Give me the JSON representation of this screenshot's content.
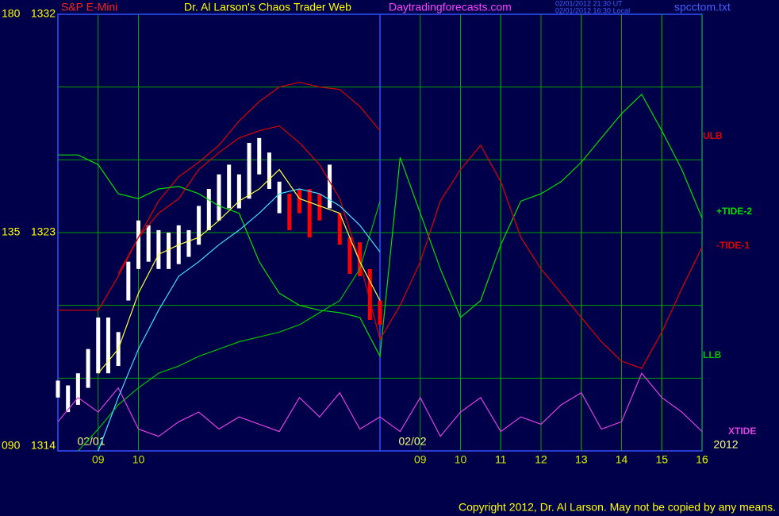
{
  "chart_data": {
    "type": "line",
    "symbol": "S&P E-Mini",
    "title": "Dr. Al Larson's Chaos Trader Web",
    "site": "Daytradingforecasts.com",
    "timestamps": [
      "02/01/2012 21:30 UT",
      "02/01/2012 16:30 Local"
    ],
    "file": "spcctom.txt",
    "copyright": "Copyright 2012, Dr. Al Larson. May not be copied by any means.",
    "xlim": [
      0,
      16
    ],
    "xticks": [
      {
        "value": 1,
        "label": "09"
      },
      {
        "value": 2,
        "label": "10"
      },
      11,
      12,
      13,
      14,
      15,
      16,
      {
        "value": 9,
        "label": "09"
      },
      {
        "value": 10,
        "label": "10"
      },
      {
        "value": 11,
        "label": "11"
      },
      {
        "value": 12,
        "label": "12"
      },
      {
        "value": 13,
        "label": "13"
      },
      {
        "value": 14,
        "label": "14"
      },
      {
        "value": 15,
        "label": "15"
      },
      {
        "value": 16,
        "label": "16"
      }
    ],
    "day_break": 8,
    "date_labels": [
      "02/01",
      "02/02",
      "2012"
    ],
    "ylim": [
      1314,
      1332
    ],
    "yticks": [
      1314,
      1323,
      1332
    ],
    "degree_labels": [
      "090",
      "135",
      "180"
    ],
    "ygrid": [
      1317,
      1320,
      1323,
      1326,
      1329
    ],
    "grid": true,
    "price": {
      "x": [
        0,
        0.25,
        0.5,
        0.75,
        1,
        1.25,
        1.5,
        1.75,
        2,
        2.25,
        2.5,
        2.75,
        3,
        3.25,
        3.5,
        3.75,
        4,
        4.25,
        4.5,
        4.75,
        5,
        5.25,
        5.5,
        5.75,
        6,
        6.25,
        6.5,
        6.75,
        7,
        7.25,
        7.5,
        7.75,
        8
      ],
      "high": [
        1316.9,
        1316.7,
        1317.2,
        1318.2,
        1319.5,
        1319.5,
        1318.9,
        1321.8,
        1323.5,
        1323.3,
        1323.1,
        1323.0,
        1323.3,
        1323.1,
        1324.1,
        1324.8,
        1325.4,
        1325.8,
        1325.4,
        1326.7,
        1326.9,
        1326.3,
        1325.1,
        1324.6,
        1324.8,
        1324.8,
        1324.6,
        1325.8,
        1323.8,
        1322.8,
        1322.6,
        1321.5,
        1320.2
      ],
      "low": [
        1316.2,
        1315.6,
        1315.9,
        1316.6,
        1317.2,
        1317.2,
        1317.5,
        1320.2,
        1321.5,
        1321.8,
        1321.5,
        1321.5,
        1321.7,
        1322.0,
        1322.5,
        1323.1,
        1323.5,
        1324.0,
        1324.0,
        1324.4,
        1325.4,
        1324.8,
        1323.8,
        1323.1,
        1323.8,
        1322.8,
        1323.5,
        1324.0,
        1322.5,
        1321.3,
        1321.2,
        1319.4,
        1319.2
      ],
      "colors": [
        "#ffffff",
        "#ffffff",
        "#ffffff",
        "#ffffff",
        "#ffffff",
        "#ffffff",
        "#ffffff",
        "#ffffff",
        "#ffffff",
        "#ffffff",
        "#ffffff",
        "#ffffff",
        "#ffffff",
        "#ffffff",
        "#ffffff",
        "#ffffff",
        "#ffffff",
        "#ffffff",
        "#ffffff",
        "#ffffff",
        "#ffffff",
        "#ffffff",
        "#ffffff",
        "#ff0000",
        "#ff0000",
        "#ff0000",
        "#ff0000",
        "#ffffff",
        "#ff0000",
        "#ff0000",
        "#ff0000",
        "#ff0000",
        "#ff0000"
      ]
    },
    "x": [
      0,
      0.5,
      1,
      1.5,
      2,
      2.5,
      3,
      3.5,
      4,
      4.5,
      5,
      5.5,
      6,
      6.5,
      7,
      7.5,
      8,
      8.5,
      9,
      9.5,
      10,
      10.5,
      11,
      11.5,
      12,
      12.5,
      13,
      13.5,
      14,
      14.5,
      15,
      15.5,
      16
    ],
    "series": [
      {
        "name": "ULB",
        "color": "#e00000",
        "values": [
          null,
          null,
          null,
          1321.3,
          1322.8,
          1324.3,
          1325.3,
          1325.9,
          1326.6,
          1327.6,
          1328.4,
          1329.0,
          1329.2,
          1329.0,
          1328.9,
          1328.2,
          1327.2,
          null,
          null,
          null,
          null,
          null,
          null,
          null,
          null,
          null,
          null,
          null,
          null,
          null,
          null,
          null,
          null
        ]
      },
      {
        "name": "+TIDE-2",
        "color": "#00e000",
        "values": [
          1326.2,
          1326.2,
          1325.8,
          1324.6,
          1324.4,
          1324.8,
          1324.9,
          1324.6,
          1324.1,
          1323.8,
          1321.8,
          1320.5,
          1320.0,
          1319.8,
          1319.7,
          1319.5,
          1317.9,
          1326.1,
          1323.8,
          1321.5,
          1319.5,
          1320.2,
          1322.5,
          1324.3,
          1324.6,
          1325.1,
          1325.9,
          1326.9,
          1327.9,
          1328.7,
          1327.2,
          1325.6,
          1323.6
        ]
      },
      {
        "name": "-TIDE-1",
        "color": "#e00000",
        "values": [
          1319.8,
          1319.8,
          1319.8,
          1321.2,
          1322.8,
          1323.8,
          1324.4,
          1325.6,
          1326.3,
          1326.9,
          1327.2,
          1327.4,
          1326.7,
          1325.8,
          1324.4,
          1321.8,
          1318.6,
          1320.0,
          1321.8,
          1324.3,
          1325.6,
          1326.6,
          1325.1,
          1322.8,
          1321.5,
          1320.5,
          1319.5,
          1318.5,
          1317.7,
          1317.4,
          1318.9,
          1320.7,
          1322.4
        ]
      },
      {
        "name": "LLB",
        "color": "#00c000",
        "values": [
          null,
          1314.0,
          1314.9,
          1315.9,
          1316.6,
          1317.2,
          1317.5,
          1317.9,
          1318.2,
          1318.5,
          1318.7,
          1318.9,
          1319.2,
          1319.7,
          1320.2,
          1321.5,
          1324.3,
          null,
          null,
          null,
          null,
          null,
          null,
          null,
          null,
          null,
          null,
          null,
          null,
          null,
          null,
          null,
          null
        ]
      },
      {
        "name": "XTIDE",
        "color": "#e040e0",
        "values": [
          1315.2,
          1316.2,
          1315.6,
          1316.6,
          1314.9,
          1314.6,
          1315.2,
          1315.6,
          1314.9,
          1315.4,
          1315.1,
          1314.8,
          1316.2,
          1315.4,
          1316.4,
          1314.9,
          1315.4,
          1314.8,
          1316.2,
          1314.6,
          1315.6,
          1316.2,
          1314.8,
          1315.4,
          1315.1,
          1315.9,
          1316.4,
          1314.9,
          1315.2,
          1317.2,
          1316.2,
          1315.6,
          1314.8
        ]
      },
      {
        "color": "#40e0ff",
        "values": [
          null,
          null,
          1314.0,
          1316.2,
          1318.2,
          1319.8,
          1321.2,
          1321.8,
          1322.5,
          1323.1,
          1323.8,
          1324.6,
          1324.8,
          1324.6,
          1324.1,
          1323.3,
          1322.2,
          null,
          null,
          null,
          null,
          null,
          null,
          null,
          null,
          null,
          null,
          null,
          null,
          null,
          null,
          null,
          null
        ]
      },
      {
        "color": "#ffff40",
        "values": [
          null,
          null,
          1317.2,
          1318.2,
          1320.5,
          1322.1,
          1322.5,
          1322.8,
          1323.5,
          1324.3,
          1324.8,
          1325.6,
          1324.4,
          1324.1,
          1323.8,
          1321.8,
          1320.2,
          null,
          null,
          null,
          null,
          null,
          null,
          null,
          null,
          null,
          null,
          null,
          null,
          null,
          null,
          null,
          null
        ]
      }
    ]
  }
}
